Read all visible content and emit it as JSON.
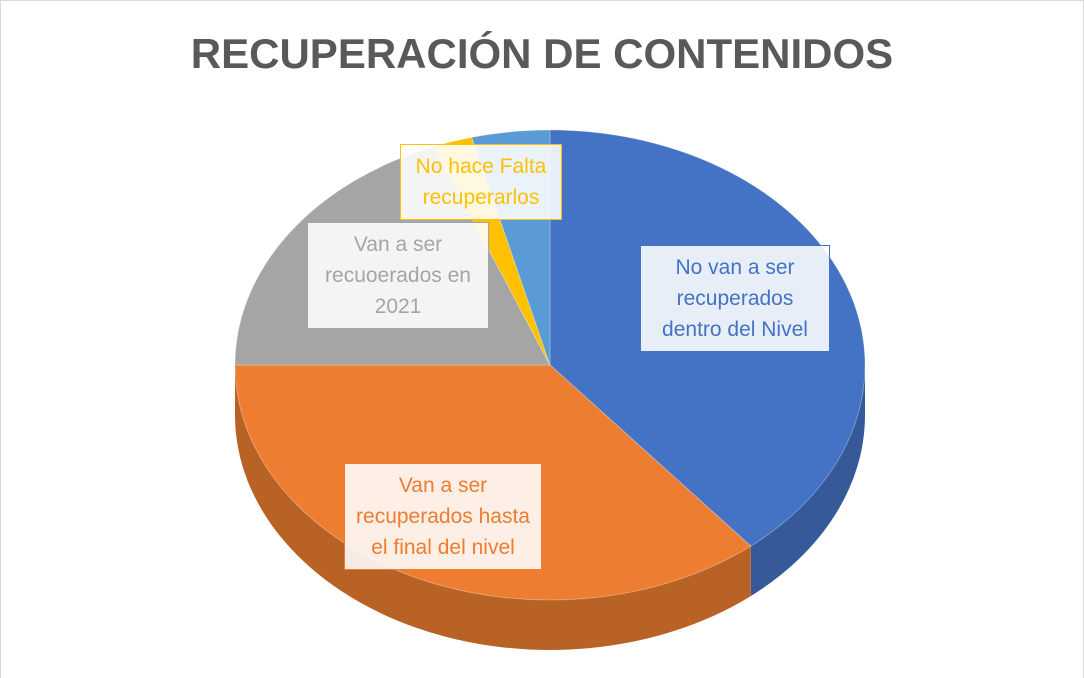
{
  "chart_data": {
    "type": "pie",
    "title": "RECUPERACIÓN DE CONTENIDOS",
    "categories": [
      "No van a ser recuperados dentro del Nivel",
      "Van a ser recuperados hasta el final del nivel",
      "Van a ser recuoerados en 2021",
      "No hace Falta recuperarlos",
      null
    ],
    "values": [
      39,
      36,
      19,
      2,
      4
    ],
    "colors": [
      "#4472c4",
      "#ed7d31",
      "#a5a5a5",
      "#ffc000",
      "#5b9bd5"
    ]
  }
}
